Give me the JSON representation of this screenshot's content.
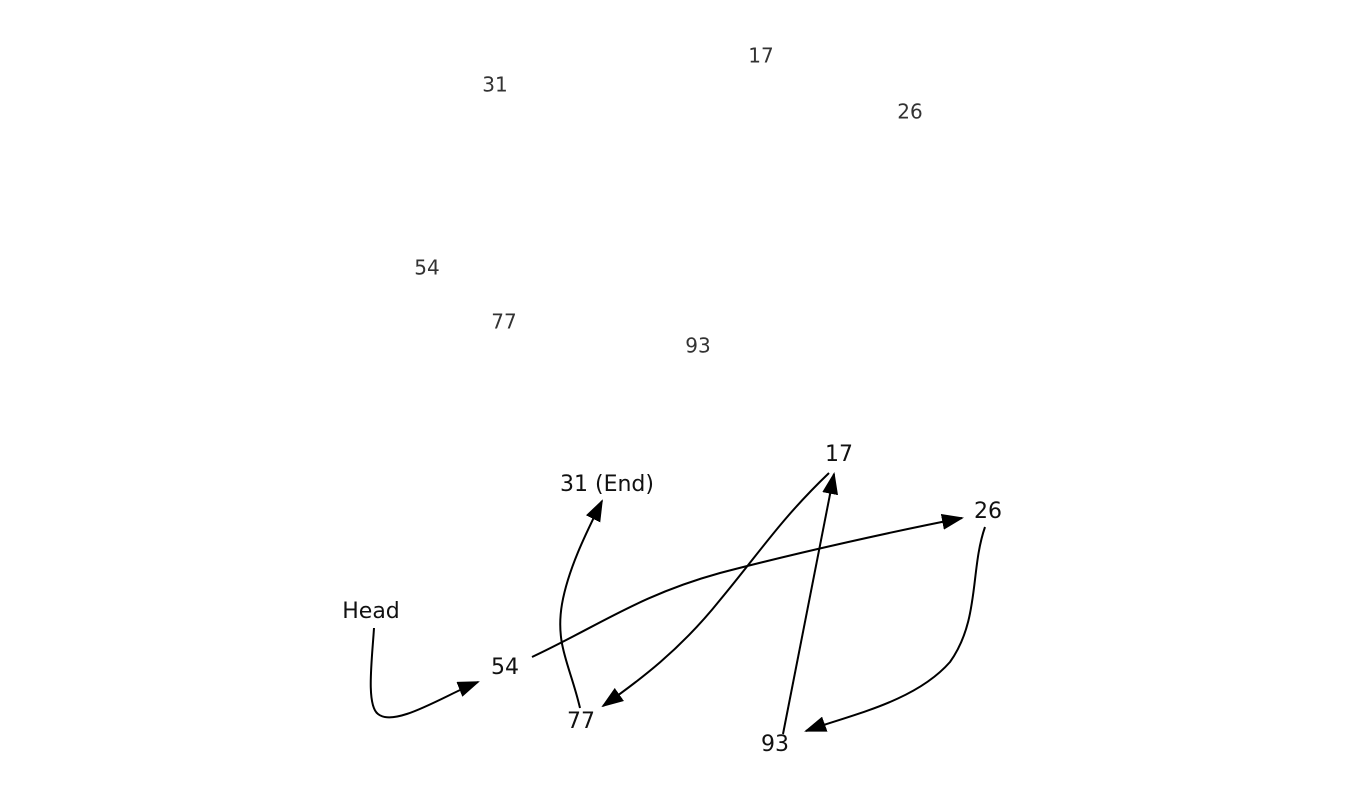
{
  "scattered_numbers": {
    "items": [
      {
        "id": "n17",
        "label": "17"
      },
      {
        "id": "n31",
        "label": "31"
      },
      {
        "id": "n26",
        "label": "26"
      },
      {
        "id": "n54",
        "label": "54"
      },
      {
        "id": "n77",
        "label": "77"
      },
      {
        "id": "n93",
        "label": "93"
      }
    ]
  },
  "linked_list": {
    "nodes": [
      {
        "id": "head",
        "label": "Head"
      },
      {
        "id": "n54",
        "label": "54"
      },
      {
        "id": "n26",
        "label": "26"
      },
      {
        "id": "n93",
        "label": "93"
      },
      {
        "id": "n17",
        "label": "17"
      },
      {
        "id": "n77",
        "label": "77"
      },
      {
        "id": "n31",
        "label": "31 (End)"
      }
    ],
    "edges": [
      {
        "from": "head",
        "to": "n54"
      },
      {
        "from": "n54",
        "to": "n26"
      },
      {
        "from": "n26",
        "to": "n93"
      },
      {
        "from": "n93",
        "to": "n17"
      },
      {
        "from": "n17",
        "to": "n77"
      },
      {
        "from": "n77",
        "to": "n31"
      }
    ]
  },
  "colors": {
    "edge": "#000000",
    "text": "#111111",
    "scatter_text": "#333333"
  }
}
